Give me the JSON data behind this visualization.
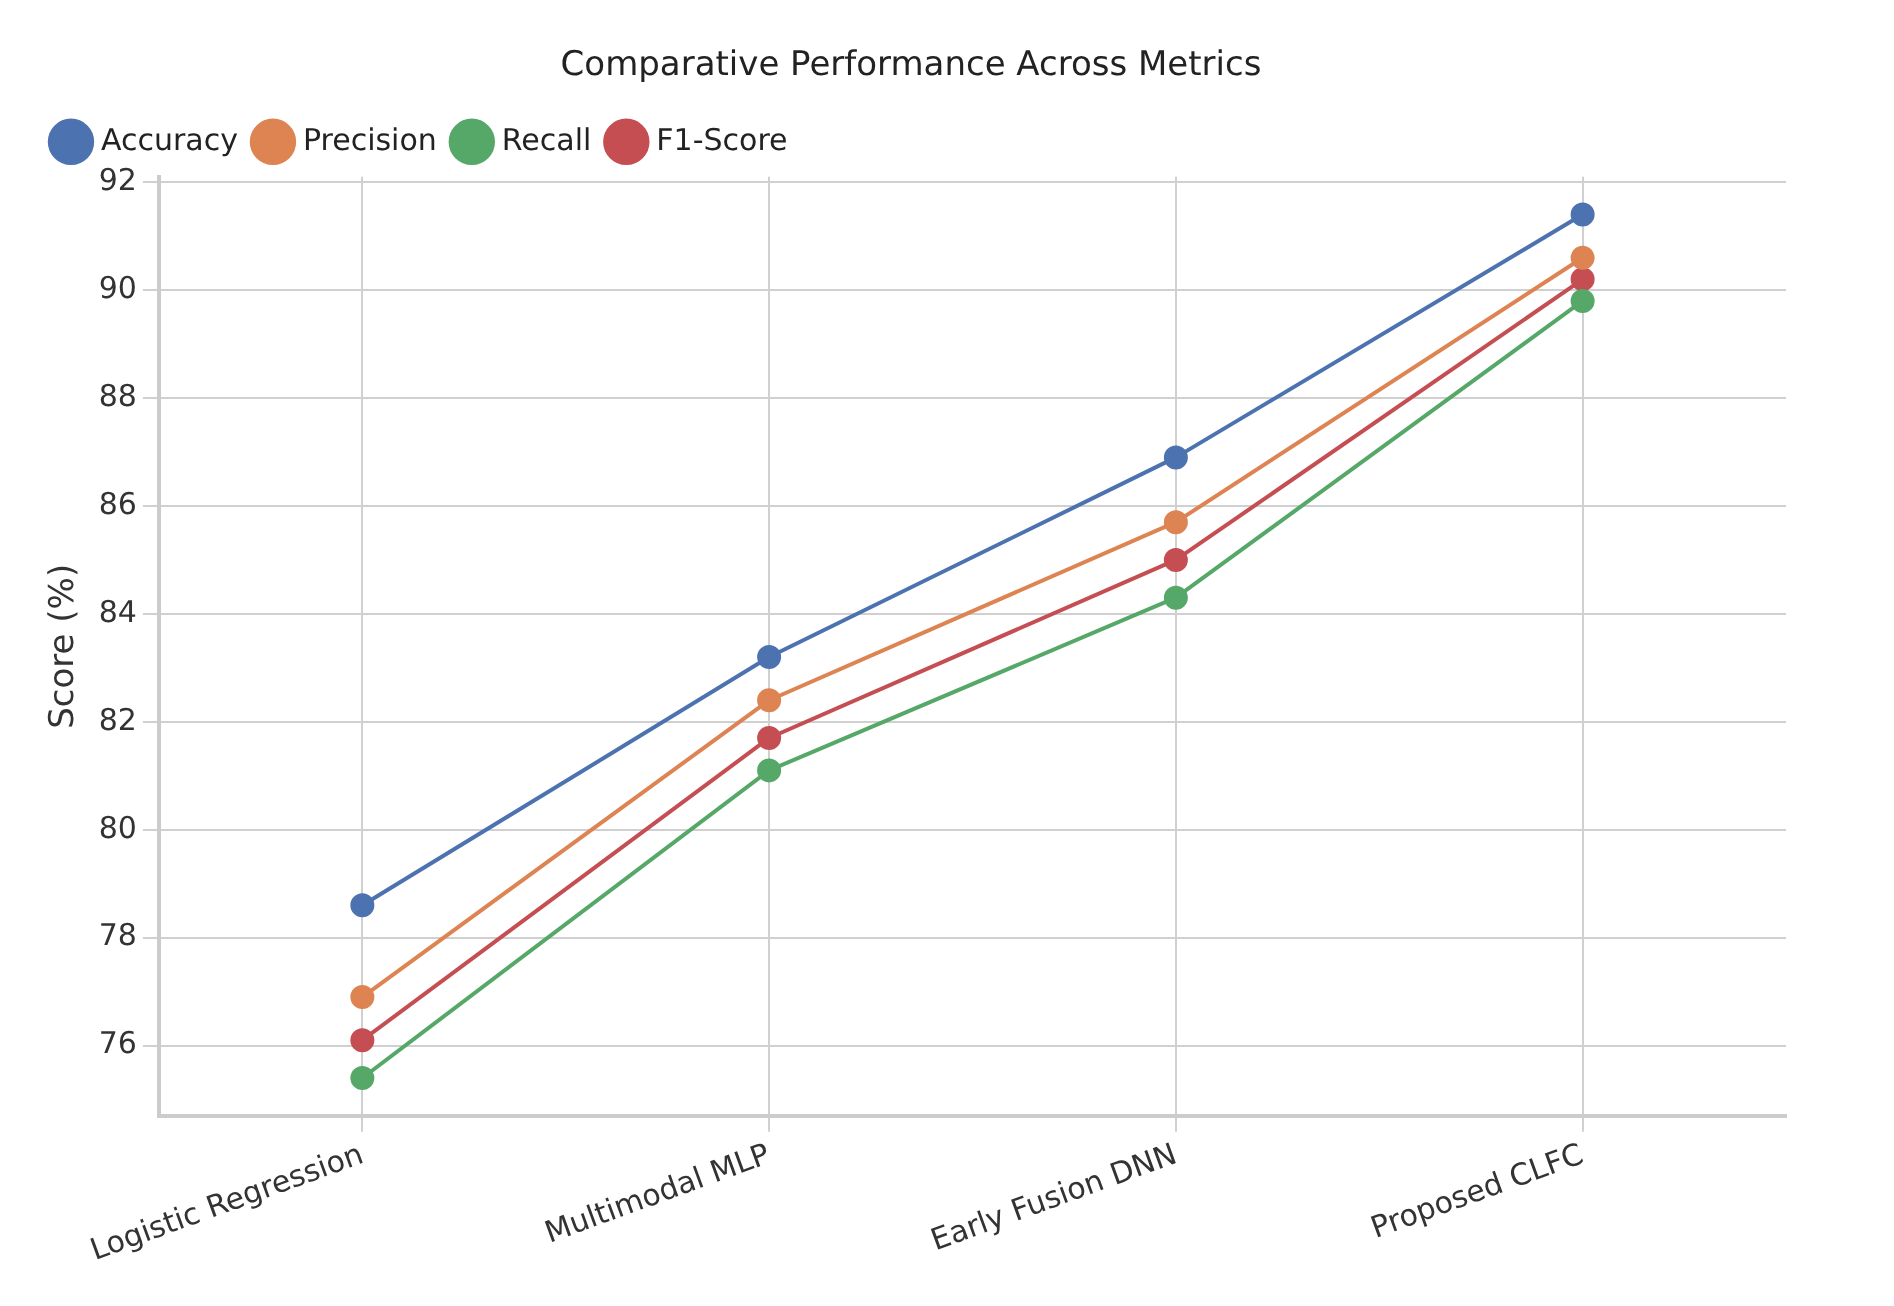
{
  "chart_data": {
    "type": "line",
    "title": "Comparative Performance Across Metrics",
    "ylabel": "Score (%)",
    "categories": [
      "Logistic Regression",
      "Multimodal MLP",
      "Early Fusion DNN",
      "Proposed CLFC"
    ],
    "series": [
      {
        "name": "Accuracy",
        "color": "#4c72b0",
        "values": [
          78.6,
          83.2,
          86.9,
          91.4
        ]
      },
      {
        "name": "Precision",
        "color": "#dd8452",
        "values": [
          76.9,
          82.4,
          85.7,
          90.6
        ]
      },
      {
        "name": "Recall",
        "color": "#55a868",
        "values": [
          75.4,
          81.1,
          84.3,
          89.8
        ]
      },
      {
        "name": "F1-Score",
        "color": "#c44e52",
        "values": [
          76.1,
          81.7,
          85.0,
          90.2
        ]
      }
    ],
    "ylim": [
      74.7,
      92.1
    ],
    "yticks": [
      76,
      78,
      80,
      82,
      84,
      86,
      88,
      90,
      92
    ],
    "grid": true,
    "legend": "top left",
    "marker": "circle",
    "line_style": "solid"
  }
}
